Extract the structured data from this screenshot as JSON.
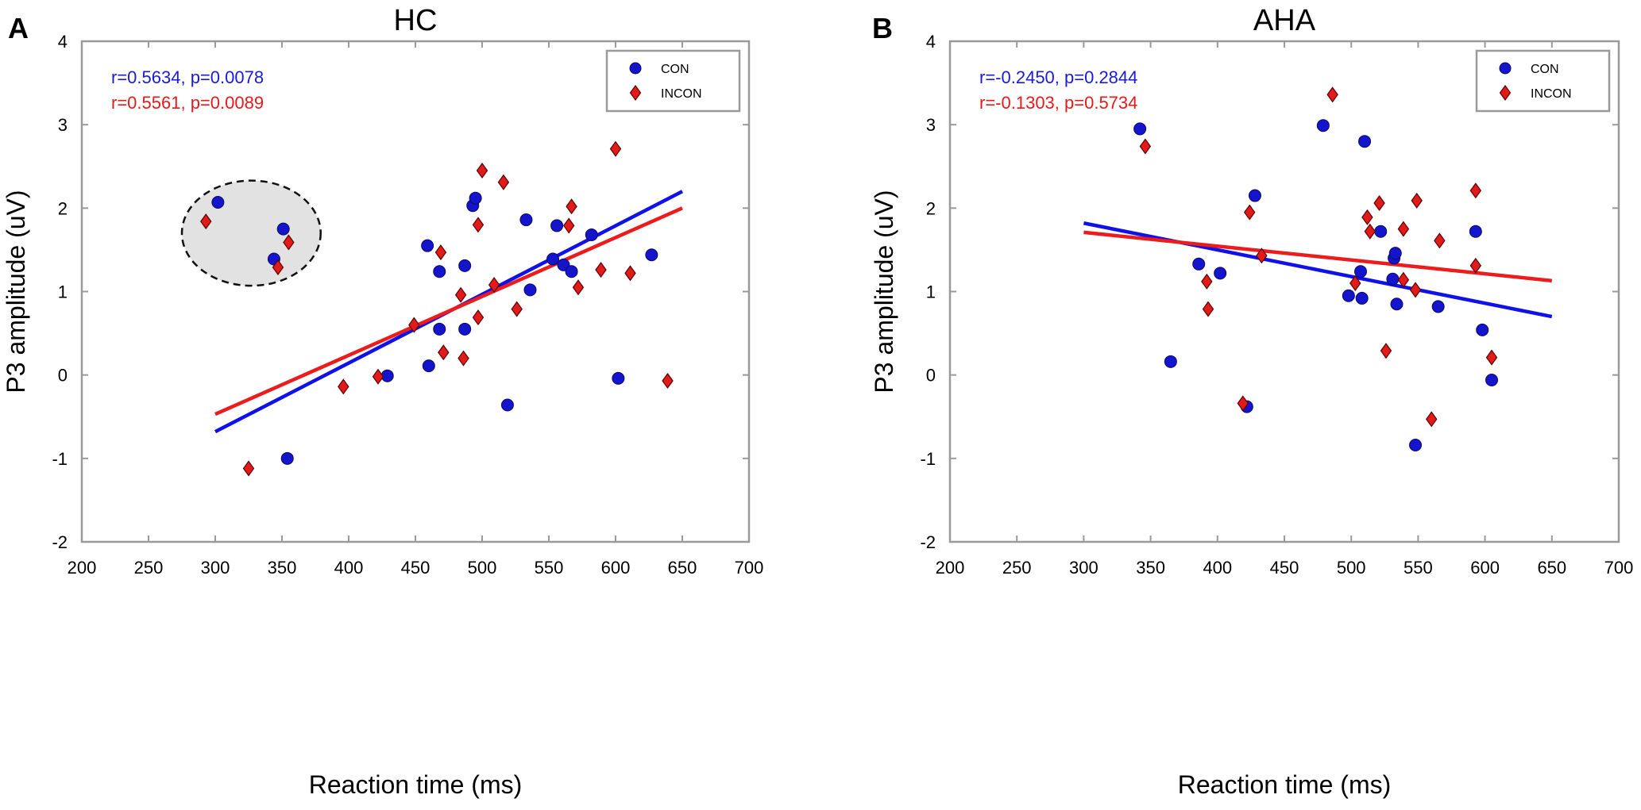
{
  "chart_data": [
    {
      "type": "scatter",
      "panel_label": "A",
      "title": "HC",
      "xlabel": "Reaction time (ms)",
      "ylabel": "P3 amplitude (uV)",
      "xlim": [
        200,
        700
      ],
      "ylim": [
        -2,
        4
      ],
      "xticks": [
        200,
        250,
        300,
        350,
        400,
        450,
        500,
        550,
        600,
        650,
        700
      ],
      "yticks": [
        -2,
        -1,
        0,
        1,
        2,
        3,
        4
      ],
      "grid": false,
      "legend_position": "top-right",
      "stats": [
        {
          "text": "r=0.5634,   p=0.0078",
          "color": "#1a1adb"
        },
        {
          "text": "r=0.5561,   p=0.0089",
          "color": "#e61a1a"
        }
      ],
      "highlight_circle": {
        "cx": 327,
        "cy": 1.7,
        "rx": 52,
        "ry": 0.63
      },
      "series": [
        {
          "name": "CON",
          "marker": "circle",
          "color": "#1414cc",
          "points": [
            [
              302,
              2.07
            ],
            [
              351,
              1.75
            ],
            [
              344,
              1.39
            ],
            [
              354,
              -1.0
            ],
            [
              429,
              -0.01
            ],
            [
              459,
              1.55
            ],
            [
              460,
              0.11
            ],
            [
              468,
              1.24
            ],
            [
              468,
              0.55
            ],
            [
              487,
              1.31
            ],
            [
              487,
              0.55
            ],
            [
              493,
              2.03
            ],
            [
              495,
              2.12
            ],
            [
              519,
              -0.36
            ],
            [
              533,
              1.86
            ],
            [
              536,
              1.02
            ],
            [
              553,
              1.39
            ],
            [
              556,
              1.79
            ],
            [
              561,
              1.32
            ],
            [
              567,
              1.24
            ],
            [
              582,
              1.68
            ],
            [
              602,
              -0.04
            ],
            [
              627,
              1.44
            ]
          ],
          "fit": [
            [
              300,
              -0.68
            ],
            [
              650,
              2.2
            ]
          ]
        },
        {
          "name": "INCON",
          "marker": "diamond",
          "color": "#e31a1a",
          "points": [
            [
              293,
              1.84
            ],
            [
              355,
              1.59
            ],
            [
              347,
              1.29
            ],
            [
              325,
              -1.12
            ],
            [
              396,
              -0.14
            ],
            [
              422,
              -0.02
            ],
            [
              449,
              0.6
            ],
            [
              469,
              1.47
            ],
            [
              471,
              0.27
            ],
            [
              484,
              0.96
            ],
            [
              486,
              0.2
            ],
            [
              497,
              1.8
            ],
            [
              497,
              0.69
            ],
            [
              500,
              2.45
            ],
            [
              509,
              1.08
            ],
            [
              516,
              2.31
            ],
            [
              526,
              0.79
            ],
            [
              565,
              1.79
            ],
            [
              567,
              2.02
            ],
            [
              572,
              1.05
            ],
            [
              589,
              1.26
            ],
            [
              600,
              2.71
            ],
            [
              611,
              1.22
            ],
            [
              639,
              -0.07
            ]
          ],
          "fit": [
            [
              300,
              -0.47
            ],
            [
              650,
              2.0
            ]
          ]
        }
      ]
    },
    {
      "type": "scatter",
      "panel_label": "B",
      "title": "AHA",
      "xlabel": "Reaction time (ms)",
      "ylabel": "P3 amplitude (uV)",
      "xlim": [
        200,
        700
      ],
      "ylim": [
        -2,
        4
      ],
      "xticks": [
        200,
        250,
        300,
        350,
        400,
        450,
        500,
        550,
        600,
        650,
        700
      ],
      "yticks": [
        -2,
        -1,
        0,
        1,
        2,
        3,
        4
      ],
      "grid": false,
      "legend_position": "top-right",
      "stats": [
        {
          "text": "r=-0.2450,   p=0.2844",
          "color": "#1a1adb"
        },
        {
          "text": "r=-0.1303,   p=0.5734",
          "color": "#e61a1a"
        }
      ],
      "series": [
        {
          "name": "CON",
          "marker": "circle",
          "color": "#1414cc",
          "points": [
            [
              342,
              2.95
            ],
            [
              365,
              0.16
            ],
            [
              386,
              1.33
            ],
            [
              402,
              1.22
            ],
            [
              422,
              -0.38
            ],
            [
              428,
              2.15
            ],
            [
              479,
              2.99
            ],
            [
              498,
              0.95
            ],
            [
              507,
              1.24
            ],
            [
              508,
              0.92
            ],
            [
              510,
              2.8
            ],
            [
              522,
              1.72
            ],
            [
              531,
              1.15
            ],
            [
              532,
              1.4
            ],
            [
              533,
              1.46
            ],
            [
              534,
              0.85
            ],
            [
              548,
              -0.84
            ],
            [
              565,
              0.82
            ],
            [
              593,
              1.72
            ],
            [
              598,
              0.54
            ],
            [
              605,
              -0.06
            ]
          ],
          "fit": [
            [
              300,
              1.82
            ],
            [
              650,
              0.7
            ]
          ]
        },
        {
          "name": "INCON",
          "marker": "diamond",
          "color": "#e31a1a",
          "points": [
            [
              346,
              2.74
            ],
            [
              392,
              1.12
            ],
            [
              393,
              0.79
            ],
            [
              419,
              -0.34
            ],
            [
              424,
              1.95
            ],
            [
              433,
              1.43
            ],
            [
              486,
              3.36
            ],
            [
              503,
              1.1
            ],
            [
              512,
              1.89
            ],
            [
              514,
              1.72
            ],
            [
              521,
              2.06
            ],
            [
              526,
              0.29
            ],
            [
              539,
              1.75
            ],
            [
              539,
              1.14
            ],
            [
              548,
              1.02
            ],
            [
              549,
              2.09
            ],
            [
              560,
              -0.53
            ],
            [
              566,
              1.61
            ],
            [
              593,
              2.21
            ],
            [
              593,
              1.31
            ],
            [
              605,
              0.21
            ]
          ],
          "fit": [
            [
              300,
              1.71
            ],
            [
              650,
              1.13
            ]
          ]
        }
      ]
    }
  ]
}
